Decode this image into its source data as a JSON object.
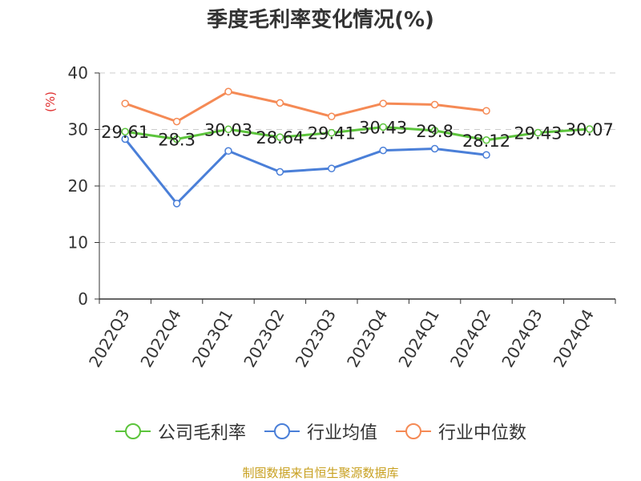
{
  "title": "季度毛利率变化情况(%)",
  "source_note": "制图数据来自恒生聚源数据库",
  "colors": {
    "company": "#5cc43c",
    "industry_avg": "#4a7fd8",
    "industry_median": "#f58a55",
    "axis_unit": "#e03030",
    "grid": "#cccccc",
    "source_text": "#c8a020"
  },
  "chart_data": {
    "type": "line",
    "title": "季度毛利率变化情况(%)",
    "ylabel": "(%)",
    "xlabel": "",
    "ylim": [
      0,
      40
    ],
    "yticks": [
      0,
      10,
      20,
      30,
      40
    ],
    "grid": true,
    "legend_position": "bottom",
    "categories": [
      "2022Q3",
      "2022Q4",
      "2023Q1",
      "2023Q2",
      "2023Q3",
      "2023Q4",
      "2024Q1",
      "2024Q2",
      "2024Q3",
      "2024Q4"
    ],
    "series": [
      {
        "name": "公司毛利率",
        "color": "#5cc43c",
        "values": [
          29.61,
          28.3,
          30.03,
          28.64,
          29.41,
          30.43,
          29.8,
          28.12,
          29.43,
          30.07
        ],
        "labels": [
          "29.61",
          "28.3",
          "30.03",
          "28.64",
          "29.41",
          "30.43",
          "29.8",
          "28.12",
          "29.43",
          "30.07"
        ],
        "show_labels": true
      },
      {
        "name": "行业均值",
        "color": "#4a7fd8",
        "values": [
          28.3,
          16.9,
          26.2,
          22.5,
          23.1,
          26.3,
          26.6,
          25.5,
          null,
          null
        ],
        "show_labels": false
      },
      {
        "name": "行业中位数",
        "color": "#f58a55",
        "values": [
          34.6,
          31.4,
          36.7,
          34.7,
          32.3,
          34.6,
          34.4,
          33.3,
          null,
          null
        ],
        "show_labels": false
      }
    ]
  }
}
